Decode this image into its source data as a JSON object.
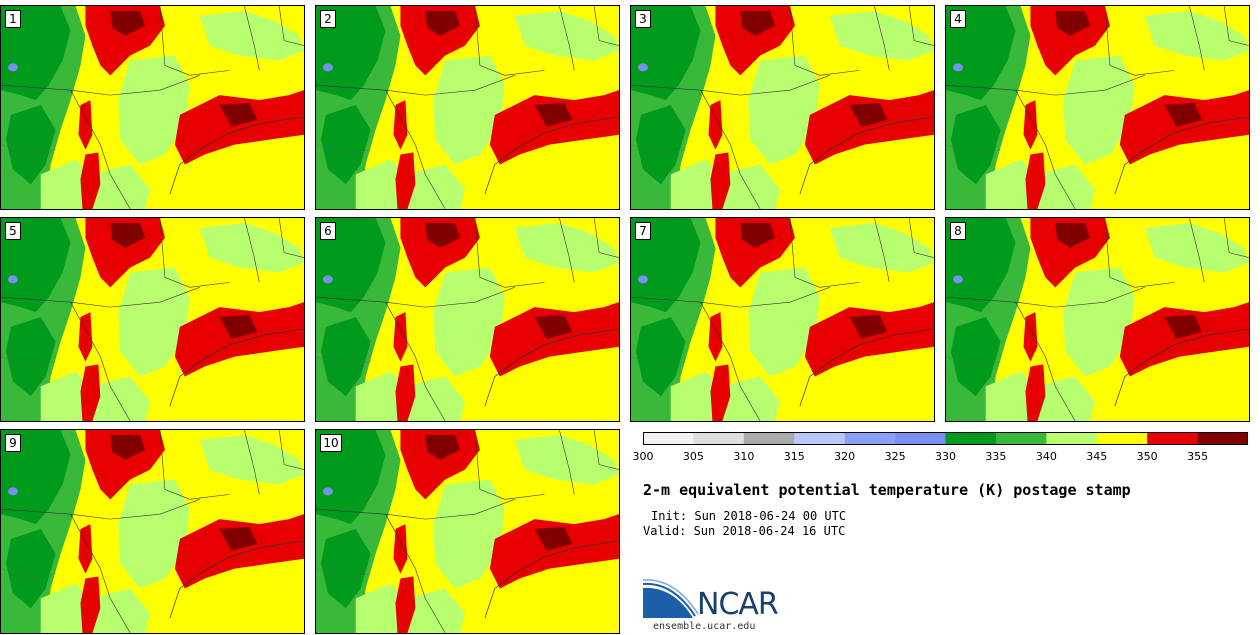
{
  "panels": [
    {
      "label": "1"
    },
    {
      "label": "2"
    },
    {
      "label": "3"
    },
    {
      "label": "4"
    },
    {
      "label": "5"
    },
    {
      "label": "6"
    },
    {
      "label": "7"
    },
    {
      "label": "8"
    },
    {
      "label": "9"
    },
    {
      "label": "10"
    }
  ],
  "colorbar": {
    "colors": [
      "#f2f2f2",
      "#dedede",
      "#aaaaaa",
      "#b8c8f8",
      "#8aa0f8",
      "#7890f0",
      "#009a1c",
      "#3ab83a",
      "#b8ff70",
      "#ffff00",
      "#e60000",
      "#800000"
    ],
    "tick_labels": [
      "300",
      "305",
      "310",
      "315",
      "320",
      "325",
      "330",
      "335",
      "340",
      "345",
      "350",
      "355"
    ]
  },
  "title": "2-m equivalent potential temperature (K) postage stamp",
  "init": "Init: Sun 2018-06-24 00 UTC",
  "valid": "Valid: Sun 2018-06-24 16 UTC",
  "logo": {
    "text": "NCAR",
    "colors": {
      "blue": "#1a5fa8",
      "navy": "#16416b"
    }
  },
  "website": "ensemble.ucar.edu"
}
